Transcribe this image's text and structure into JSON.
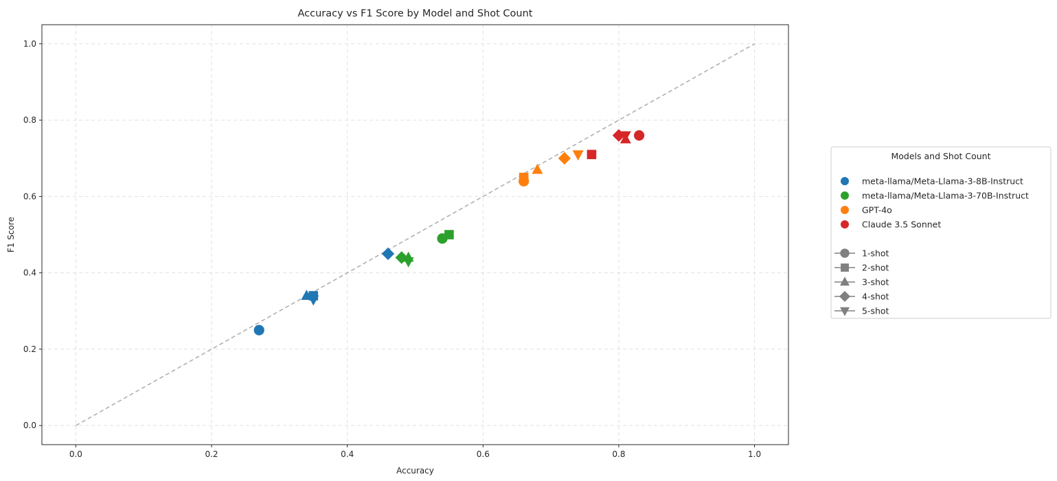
{
  "chart_data": {
    "type": "scatter",
    "title": "Accuracy vs F1 Score by Model and Shot Count",
    "xlabel": "Accuracy",
    "ylabel": "F1 Score",
    "xlim": [
      -0.05,
      1.05
    ],
    "ylim": [
      -0.05,
      1.05
    ],
    "xticks": [
      0.0,
      0.2,
      0.4,
      0.6,
      0.8,
      1.0
    ],
    "yticks": [
      0.0,
      0.2,
      0.4,
      0.6,
      0.8,
      1.0
    ],
    "xtick_labels": [
      "0.0",
      "0.2",
      "0.4",
      "0.6",
      "0.8",
      "1.0"
    ],
    "ytick_labels": [
      "0.0",
      "0.2",
      "0.4",
      "0.6",
      "0.8",
      "1.0"
    ],
    "grid": true,
    "reference_line": {
      "from": [
        0,
        0
      ],
      "to": [
        1,
        1
      ],
      "style": "dashed",
      "color": "#b0b0b0"
    },
    "legend": {
      "title": "Models and Shot Count",
      "placement": "right, outside plot",
      "shot_entries": [
        {
          "label": "1-shot",
          "marker": "circle"
        },
        {
          "label": "2-shot",
          "marker": "square"
        },
        {
          "label": "3-shot",
          "marker": "triangle-up"
        },
        {
          "label": "4-shot",
          "marker": "diamond"
        },
        {
          "label": "5-shot",
          "marker": "triangle-down"
        }
      ],
      "shot_marker_color": "#808080"
    },
    "series": [
      {
        "name": "meta-llama/Meta-Llama-3-8B-Instruct",
        "color": "#1f77b4",
        "points": [
          {
            "shot": "1-shot",
            "marker": "circle",
            "x": 0.27,
            "y": 0.25
          },
          {
            "shot": "2-shot",
            "marker": "square",
            "x": 0.35,
            "y": 0.34
          },
          {
            "shot": "3-shot",
            "marker": "triangle-up",
            "x": 0.34,
            "y": 0.34
          },
          {
            "shot": "4-shot",
            "marker": "diamond",
            "x": 0.46,
            "y": 0.45
          },
          {
            "shot": "5-shot",
            "marker": "triangle-down",
            "x": 0.35,
            "y": 0.33
          }
        ]
      },
      {
        "name": "meta-llama/Meta-Llama-3-70B-Instruct",
        "color": "#2ca02c",
        "points": [
          {
            "shot": "1-shot",
            "marker": "circle",
            "x": 0.54,
            "y": 0.49
          },
          {
            "shot": "2-shot",
            "marker": "square",
            "x": 0.55,
            "y": 0.5
          },
          {
            "shot": "3-shot",
            "marker": "triangle-up",
            "x": 0.49,
            "y": 0.44
          },
          {
            "shot": "4-shot",
            "marker": "diamond",
            "x": 0.48,
            "y": 0.44
          },
          {
            "shot": "5-shot",
            "marker": "triangle-down",
            "x": 0.49,
            "y": 0.43
          }
        ]
      },
      {
        "name": "GPT-4o",
        "color": "#ff7f0e",
        "points": [
          {
            "shot": "1-shot",
            "marker": "circle",
            "x": 0.66,
            "y": 0.64
          },
          {
            "shot": "2-shot",
            "marker": "square",
            "x": 0.66,
            "y": 0.65
          },
          {
            "shot": "3-shot",
            "marker": "triangle-up",
            "x": 0.68,
            "y": 0.67
          },
          {
            "shot": "4-shot",
            "marker": "diamond",
            "x": 0.72,
            "y": 0.7
          },
          {
            "shot": "5-shot",
            "marker": "triangle-down",
            "x": 0.74,
            "y": 0.71
          }
        ]
      },
      {
        "name": "Claude 3.5 Sonnet",
        "color": "#d62728",
        "points": [
          {
            "shot": "1-shot",
            "marker": "circle",
            "x": 0.83,
            "y": 0.76
          },
          {
            "shot": "2-shot",
            "marker": "square",
            "x": 0.76,
            "y": 0.71
          },
          {
            "shot": "3-shot",
            "marker": "triangle-up",
            "x": 0.81,
            "y": 0.75
          },
          {
            "shot": "4-shot",
            "marker": "diamond",
            "x": 0.8,
            "y": 0.76
          },
          {
            "shot": "5-shot",
            "marker": "triangle-down",
            "x": 0.81,
            "y": 0.76
          }
        ]
      }
    ]
  }
}
